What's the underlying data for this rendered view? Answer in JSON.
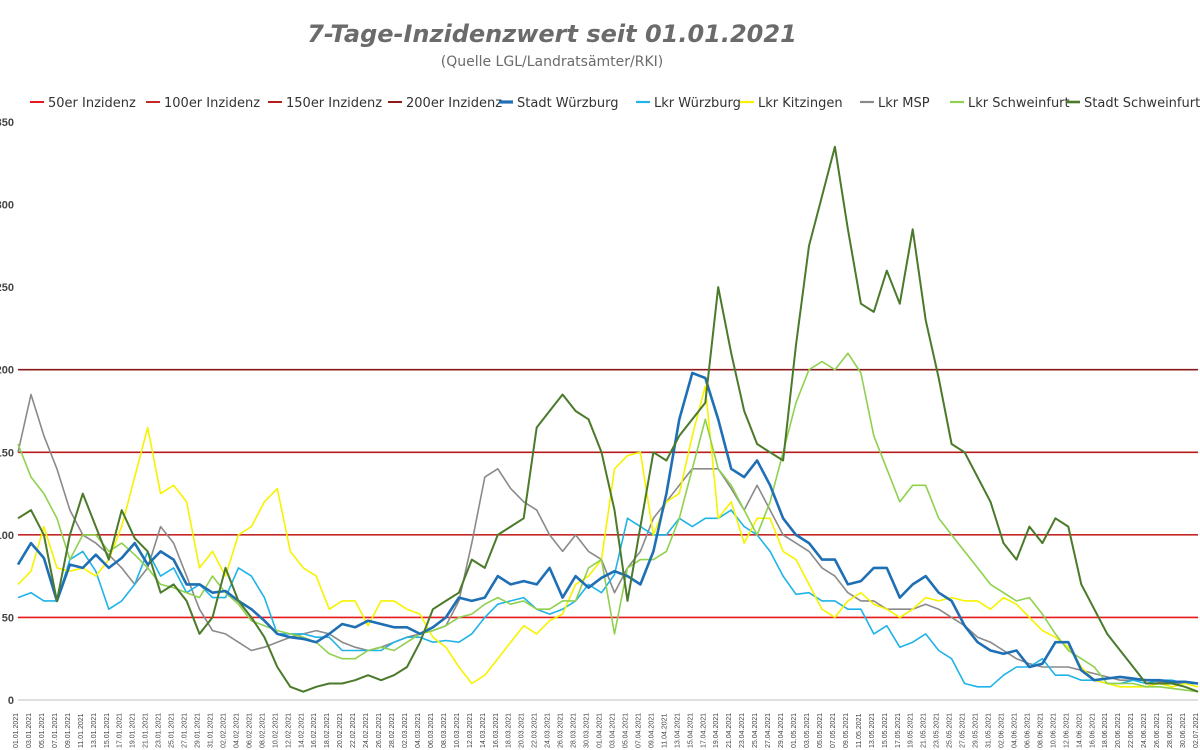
{
  "chart_data": {
    "type": "line",
    "title": "7-Tage-Inzidenzwert seit 01.01.2021",
    "subtitle": "(Quelle LGL/Landratsämter/RKI)",
    "ylim": [
      0,
      350
    ],
    "ytick_labels": [
      "0",
      "50",
      "100",
      "150",
      "200",
      "250",
      "300",
      "350"
    ],
    "grid": false,
    "legend_position": "top",
    "x_dates": [
      "01.01.2021",
      "03.01.2021",
      "05.01.2021",
      "07.01.2021",
      "09.01.2021",
      "11.01.2021",
      "13.01.2021",
      "15.01.2021",
      "17.01.2021",
      "19.01.2021",
      "21.01.2021",
      "23.01.2021",
      "25.01.2021",
      "27.01.2021",
      "29.01.2021",
      "31.01.2021",
      "02.02.2021",
      "04.02.2021",
      "06.02.2021",
      "08.02.2021",
      "10.02.2021",
      "12.02.2021",
      "14.02.2021",
      "16.02.2021",
      "18.02.2021",
      "20.02.2021",
      "22.02.2021",
      "24.02.2021",
      "26.02.2021",
      "28.02.2021",
      "02.03.2021",
      "04.03.2021",
      "06.03.2021",
      "08.03.2021",
      "10.03.2021",
      "12.03.2021",
      "14.03.2021",
      "16.03.2021",
      "18.03.2021",
      "20.03.2021",
      "22.03.2021",
      "24.03.2021",
      "26.03.2021",
      "28.03.2021",
      "30.03.2021",
      "01.04.2021",
      "03.04.2021",
      "05.04.2021",
      "07.04.2021",
      "09.04.2021",
      "11.04.2021",
      "13.04.2021",
      "15.04.2021",
      "17.04.2021",
      "19.04.2021",
      "21.04.2021",
      "23.04.2021",
      "25.04.2021",
      "27.04.2021",
      "29.04.2021",
      "01.05.2021",
      "03.05.2021",
      "05.05.2021",
      "07.05.2021",
      "09.05.2021",
      "11.05.2021",
      "13.05.2021",
      "15.05.2021",
      "17.05.2021",
      "19.05.2021",
      "21.05.2021",
      "23.05.2021",
      "25.05.2021",
      "27.05.2021",
      "29.05.2021",
      "31.05.2021",
      "02.06.2021",
      "04.06.2021",
      "06.06.2021",
      "08.06.2021",
      "10.06.2021",
      "12.06.2021",
      "14.06.2021",
      "16.06.2021",
      "18.06.2021",
      "20.06.2021",
      "22.06.2021",
      "24.06.2021",
      "26.06.2021",
      "28.06.2021",
      "30.06.2021",
      "02.07.2021"
    ],
    "series": [
      {
        "name": "50er Inzidenz",
        "color": "#e41a1c",
        "constant": 50
      },
      {
        "name": "100er Inzidenz",
        "color": "#c62828",
        "constant": 100
      },
      {
        "name": "150er Inzidenz",
        "color": "#b71c1c",
        "constant": 150
      },
      {
        "name": "200er Inzidenz",
        "color": "#8b1a1a",
        "constant": 200
      },
      {
        "name": "Stadt Würzburg",
        "color": "#1f6fb5",
        "width": 2.6,
        "values": [
          82,
          95,
          86,
          60,
          82,
          80,
          88,
          80,
          86,
          95,
          82,
          90,
          85,
          70,
          70,
          65,
          66,
          60,
          55,
          48,
          40,
          38,
          37,
          35,
          40,
          46,
          44,
          48,
          46,
          44,
          44,
          40,
          44,
          50,
          62,
          60,
          62,
          75,
          70,
          72,
          70,
          80,
          62,
          75,
          68,
          74,
          78,
          75,
          70,
          90,
          125,
          170,
          198,
          195,
          170,
          140,
          135,
          145,
          130,
          110,
          100,
          95,
          85,
          85,
          70,
          72,
          80,
          80,
          62,
          70,
          75,
          65,
          60,
          45,
          35,
          30,
          28,
          30,
          20,
          22,
          35,
          35,
          18,
          12,
          13,
          14,
          13,
          12,
          12,
          11,
          11,
          10
        ]
      },
      {
        "name": "Lkr Würzburg",
        "color": "#1fb3e8",
        "width": 1.6,
        "values": [
          62,
          65,
          60,
          60,
          85,
          90,
          78,
          55,
          60,
          70,
          90,
          75,
          80,
          65,
          70,
          62,
          62,
          80,
          75,
          62,
          40,
          40,
          40,
          38,
          38,
          30,
          30,
          30,
          30,
          35,
          38,
          38,
          35,
          36,
          35,
          40,
          50,
          58,
          60,
          62,
          55,
          52,
          55,
          60,
          70,
          65,
          76,
          110,
          105,
          100,
          100,
          110,
          105,
          110,
          110,
          115,
          105,
          100,
          90,
          75,
          64,
          65,
          60,
          60,
          55,
          55,
          40,
          45,
          32,
          35,
          40,
          30,
          25,
          10,
          8,
          8,
          15,
          20,
          20,
          25,
          15,
          15,
          12,
          12,
          10,
          10,
          12,
          10,
          12,
          12,
          10,
          10
        ]
      },
      {
        "name": "Lkr Kitzingen",
        "color": "#f7f300",
        "width": 1.6,
        "values": [
          70,
          78,
          105,
          80,
          78,
          80,
          75,
          85,
          105,
          135,
          165,
          125,
          130,
          120,
          80,
          90,
          75,
          100,
          105,
          120,
          128,
          90,
          80,
          75,
          55,
          60,
          60,
          45,
          60,
          60,
          55,
          52,
          38,
          32,
          20,
          10,
          15,
          25,
          35,
          45,
          40,
          48,
          52,
          70,
          75,
          85,
          140,
          148,
          150,
          100,
          120,
          125,
          160,
          190,
          110,
          120,
          95,
          110,
          110,
          90,
          85,
          70,
          55,
          50,
          60,
          65,
          58,
          55,
          50,
          55,
          62,
          60,
          62,
          60,
          60,
          55,
          62,
          58,
          50,
          42,
          38,
          32,
          20,
          12,
          10,
          8,
          8,
          8,
          10,
          8,
          10,
          8
        ]
      },
      {
        "name": "Lkr MSP",
        "color": "#8a8a8a",
        "width": 1.6,
        "values": [
          150,
          185,
          160,
          140,
          115,
          100,
          95,
          88,
          80,
          70,
          80,
          105,
          95,
          75,
          55,
          42,
          40,
          35,
          30,
          32,
          35,
          38,
          40,
          42,
          40,
          35,
          32,
          30,
          32,
          35,
          38,
          40,
          42,
          45,
          60,
          95,
          135,
          140,
          128,
          120,
          115,
          100,
          90,
          100,
          90,
          85,
          65,
          80,
          90,
          110,
          120,
          130,
          140,
          140,
          140,
          128,
          115,
          130,
          115,
          100,
          95,
          90,
          80,
          75,
          65,
          60,
          60,
          55,
          55,
          55,
          58,
          55,
          50,
          45,
          38,
          35,
          30,
          25,
          22,
          20,
          20,
          20,
          18,
          16,
          14,
          12,
          12,
          12,
          11,
          10,
          10,
          10
        ]
      },
      {
        "name": "Lkr Schweinfurt",
        "color": "#8fd14f",
        "width": 1.6,
        "values": [
          155,
          135,
          125,
          110,
          85,
          100,
          100,
          90,
          95,
          88,
          80,
          70,
          68,
          65,
          62,
          75,
          65,
          58,
          48,
          45,
          42,
          40,
          38,
          35,
          28,
          25,
          25,
          30,
          32,
          30,
          35,
          40,
          42,
          45,
          50,
          52,
          58,
          62,
          58,
          60,
          55,
          55,
          60,
          60,
          80,
          85,
          40,
          80,
          85,
          85,
          90,
          110,
          140,
          170,
          140,
          130,
          115,
          100,
          120,
          150,
          180,
          200,
          205,
          200,
          210,
          198,
          160,
          140,
          120,
          130,
          130,
          110,
          100,
          90,
          80,
          70,
          65,
          60,
          62,
          52,
          40,
          30,
          25,
          20,
          10,
          10,
          10,
          8,
          8,
          7,
          6,
          5
        ]
      },
      {
        "name": "Stadt Schweinfurt",
        "color": "#4a7a2a",
        "width": 2.0,
        "values": [
          110,
          115,
          100,
          60,
          100,
          125,
          105,
          85,
          115,
          98,
          90,
          65,
          70,
          60,
          40,
          50,
          80,
          60,
          50,
          38,
          20,
          8,
          5,
          8,
          10,
          10,
          12,
          15,
          12,
          15,
          20,
          35,
          55,
          60,
          65,
          85,
          80,
          100,
          105,
          110,
          165,
          175,
          185,
          175,
          170,
          150,
          115,
          60,
          105,
          150,
          145,
          160,
          170,
          180,
          250,
          210,
          175,
          155,
          150,
          145,
          215,
          275,
          305,
          335,
          285,
          240,
          235,
          260,
          240,
          285,
          230,
          195,
          155,
          150,
          135,
          120,
          95,
          85,
          105,
          95,
          110,
          105,
          70,
          55,
          40,
          30,
          20,
          10,
          10,
          10,
          8,
          5
        ]
      }
    ]
  }
}
